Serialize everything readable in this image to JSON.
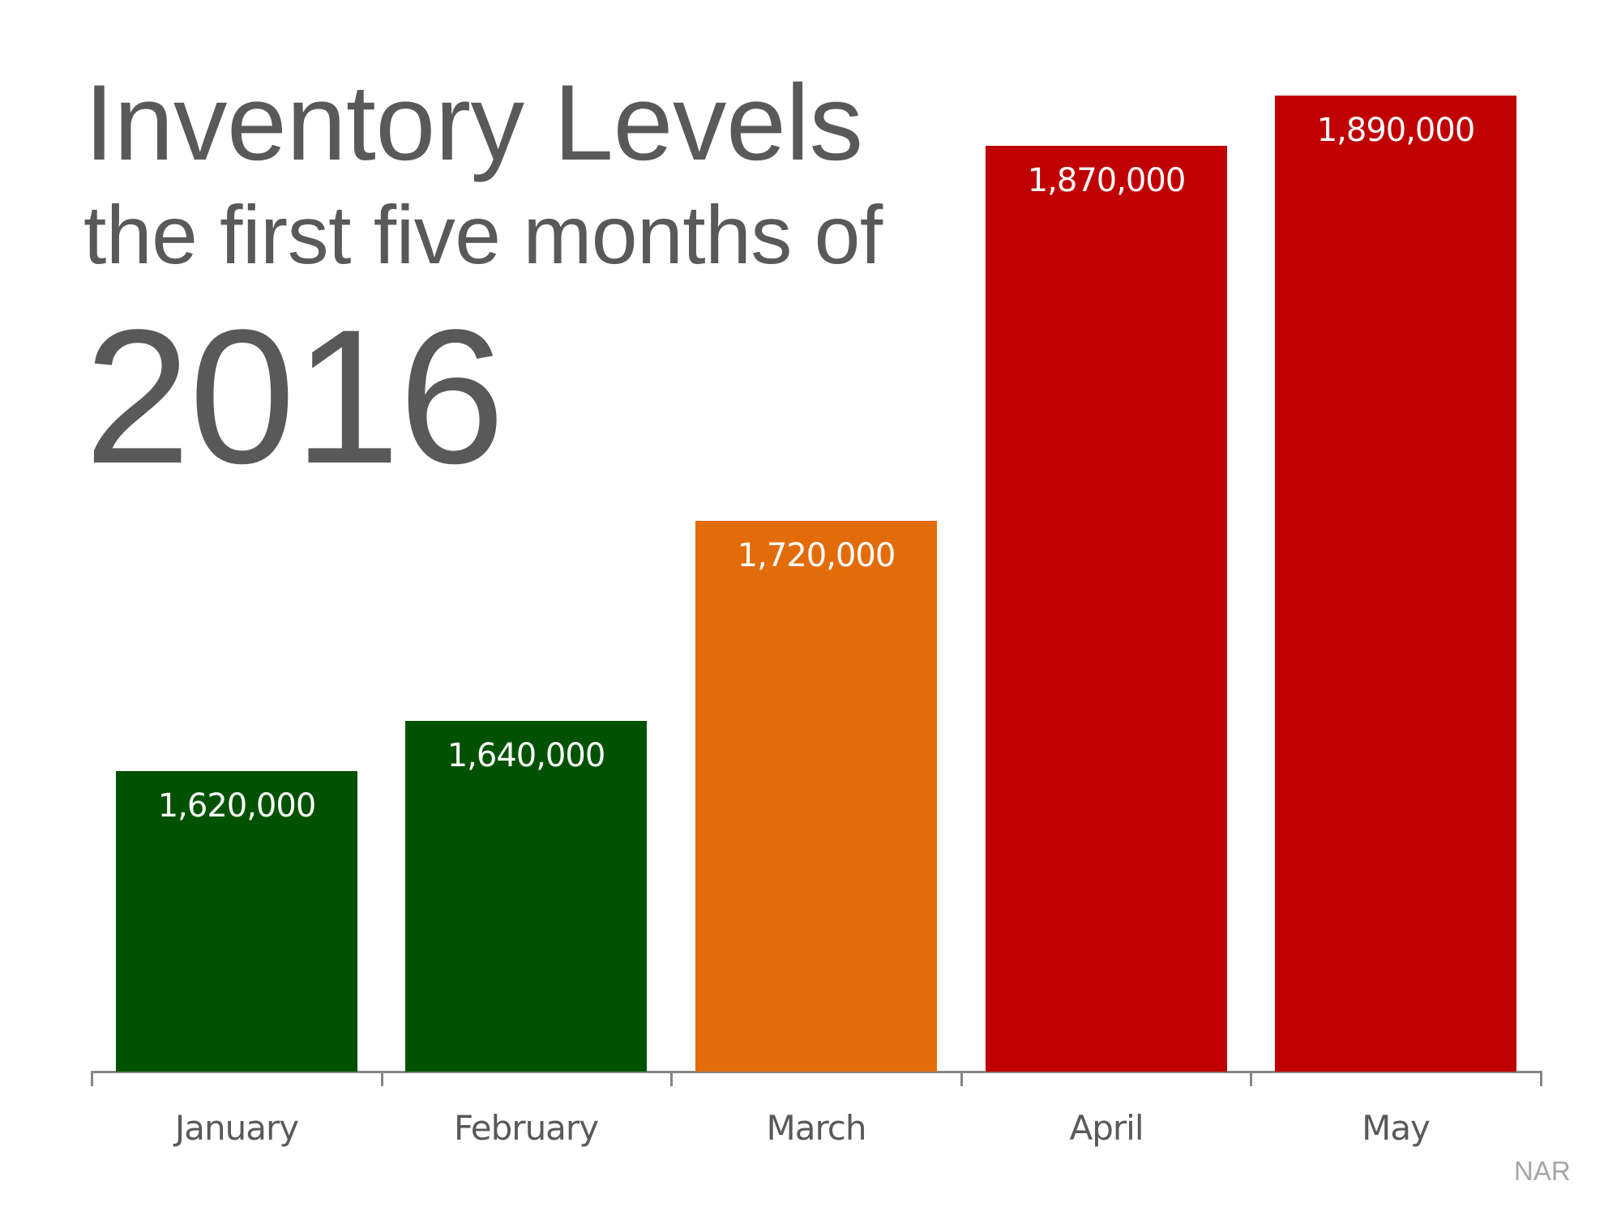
{
  "title": {
    "main": "Inventory Levels",
    "sub": "the first five months of",
    "year": "2016"
  },
  "source": "NAR",
  "colors": {
    "green": "#005200",
    "orange": "#e36c0a",
    "red": "#c00000",
    "title_text": "#595959",
    "axis": "#868686",
    "source_text": "#a6a6a6"
  },
  "chart_data": {
    "type": "bar",
    "title": "Inventory Levels the first five months of 2016",
    "xlabel": "",
    "ylabel": "",
    "categories": [
      "January",
      "February",
      "March",
      "April",
      "May"
    ],
    "values": [
      1620000,
      1640000,
      1720000,
      1870000,
      1890000
    ],
    "value_labels": [
      "1,620,000",
      "1,640,000",
      "1,720,000",
      "1,870,000",
      "1,890,000"
    ],
    "bar_colors": [
      "#005200",
      "#005200",
      "#e36c0a",
      "#c00000",
      "#c00000"
    ],
    "ylim": [
      1500000,
      1930000
    ],
    "grid": false,
    "legend": null,
    "y_axis_visible": false,
    "data_labels": "inside-top",
    "source": "NAR"
  }
}
